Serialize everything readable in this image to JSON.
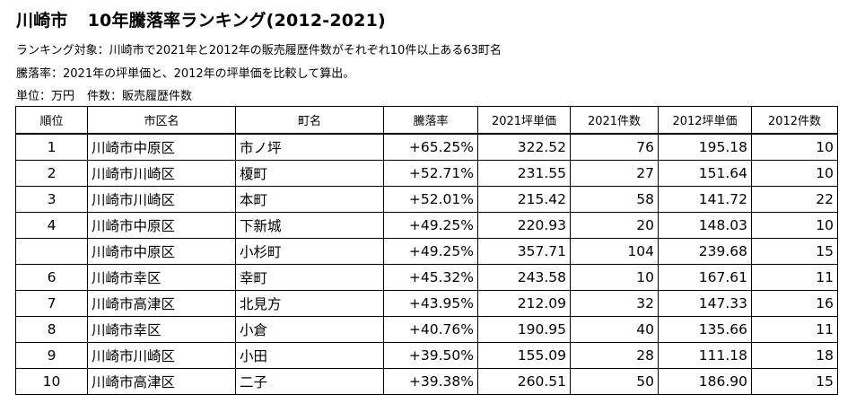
{
  "title": {
    "city": "川崎市",
    "ranking": "10年騰落率ランキング(2012-2021)"
  },
  "notes": {
    "target": "ランキング対象：川崎市で2021年と2012年の販売履歴件数がそれぞれ10件以上ある63町名",
    "definition": "騰落率：2021年の坪単価と、2012年の坪単価を比較して算出。",
    "unit": "単位：万円",
    "count": "件数：販売履歴件数"
  },
  "table": {
    "headers": [
      "順位",
      "市区名",
      "町名",
      "騰落率",
      "2021坪単価",
      "2021件数",
      "2012坪単価",
      "2012件数"
    ],
    "rows": [
      [
        "1",
        "川崎市中原区",
        "市ノ坪",
        "+65.25%",
        "322.52",
        "76",
        "195.18",
        "10"
      ],
      [
        "2",
        "川崎市川崎区",
        "榎町",
        "+52.71%",
        "231.55",
        "27",
        "151.64",
        "10"
      ],
      [
        "3",
        "川崎市川崎区",
        "本町",
        "+52.01%",
        "215.42",
        "58",
        "141.72",
        "22"
      ],
      [
        "4",
        "川崎市中原区",
        "下新城",
        "+49.25%",
        "220.93",
        "20",
        "148.03",
        "10"
      ],
      [
        "",
        "川崎市中原区",
        "小杉町",
        "+49.25%",
        "357.71",
        "104",
        "239.68",
        "15"
      ],
      [
        "6",
        "川崎市幸区",
        "幸町",
        "+45.32%",
        "243.58",
        "10",
        "167.61",
        "11"
      ],
      [
        "7",
        "川崎市高津区",
        "北見方",
        "+43.95%",
        "212.09",
        "32",
        "147.33",
        "16"
      ],
      [
        "8",
        "川崎市幸区",
        "小倉",
        "+40.76%",
        "190.95",
        "40",
        "135.66",
        "11"
      ],
      [
        "9",
        "川崎市川崎区",
        "小田",
        "+39.50%",
        "155.09",
        "28",
        "111.18",
        "18"
      ],
      [
        "10",
        "川崎市高津区",
        "二子",
        "+39.38%",
        "260.51",
        "50",
        "186.90",
        "15"
      ]
    ]
  }
}
